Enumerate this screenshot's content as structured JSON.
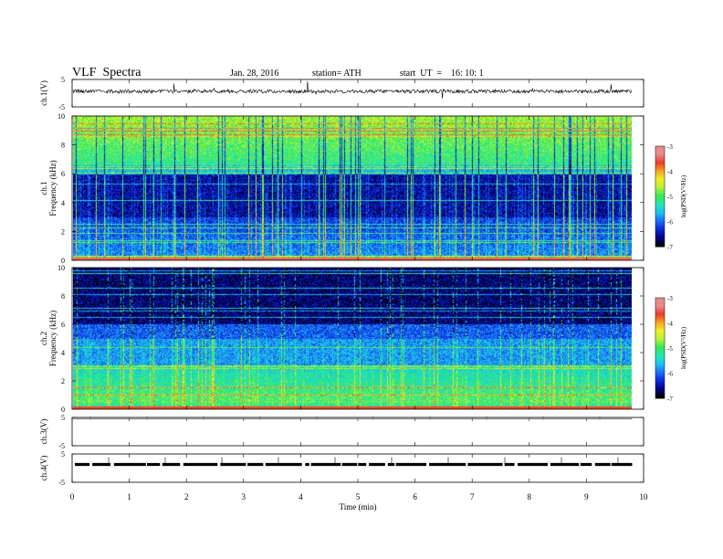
{
  "header": {
    "title": "VLF  Spectra",
    "date": "Jan. 28, 2016",
    "station": "station= ATH",
    "start": "start  UT  =    16: 10: 1"
  },
  "colors": {
    "waveform": "#000000",
    "colormap": [
      "#000000",
      "#06008a",
      "#0a2bd8",
      "#1e6cff",
      "#19c4f0",
      "#21e8b4",
      "#35e855",
      "#b5f238",
      "#f3ef24",
      "#f7a420",
      "#ef3b2a",
      "#e98a8a",
      "#ffffff"
    ]
  },
  "chart_data": [
    {
      "type": "line",
      "panel": "ch1-waveform",
      "ylabel": "ch.1(V)",
      "yticks": [
        "5",
        "-5"
      ],
      "ylim": [
        -5,
        5
      ],
      "description_values": "continuous noisy waveform centered near 0 V"
    },
    {
      "type": "heatmap",
      "panel": "ch1-spectrogram",
      "ylabel_line1": "ch.1",
      "ylabel_line2": "Frequency  (kHz)",
      "yticks": [
        "10",
        "8",
        "6",
        "4",
        "2",
        "0"
      ],
      "ylim": [
        0,
        10
      ],
      "xlim": [
        0,
        10
      ],
      "colorbar": {
        "label": "log(PSD(V²/Hz)",
        "ticks": [
          "-3",
          "-4",
          "-5",
          "-6",
          "-7"
        ],
        "range": [
          -7,
          -3
        ]
      }
    },
    {
      "type": "heatmap",
      "panel": "ch2-spectrogram",
      "ylabel_line1": "ch.2",
      "ylabel_line2": "Frequency  (kHz)",
      "yticks": [
        "10",
        "8",
        "6",
        "4",
        "2",
        "0"
      ],
      "ylim": [
        0,
        10
      ],
      "xlim": [
        0,
        10
      ],
      "colorbar": {
        "label": "log(PSD(V²/Hz)",
        "ticks": [
          "-3",
          "-4",
          "-5",
          "-6",
          "-7"
        ],
        "range": [
          -7,
          -3
        ]
      }
    },
    {
      "type": "line",
      "panel": "ch3-waveform",
      "ylabel": "ch.3(V)",
      "yticks": [
        "5",
        "-5"
      ],
      "ylim": [
        -5,
        5
      ]
    },
    {
      "type": "line",
      "panel": "ch4-waveform",
      "ylabel": "ch.4(V)",
      "yticks": [
        "5",
        "-5"
      ],
      "ylim": [
        -5,
        5
      ]
    }
  ],
  "xaxis": {
    "label": "Time  (min)",
    "ticks": [
      "0",
      "1",
      "2",
      "3",
      "4",
      "5",
      "6",
      "7",
      "8",
      "9",
      "10"
    ],
    "xlim": [
      0,
      10
    ],
    "data_end": 9.8
  }
}
